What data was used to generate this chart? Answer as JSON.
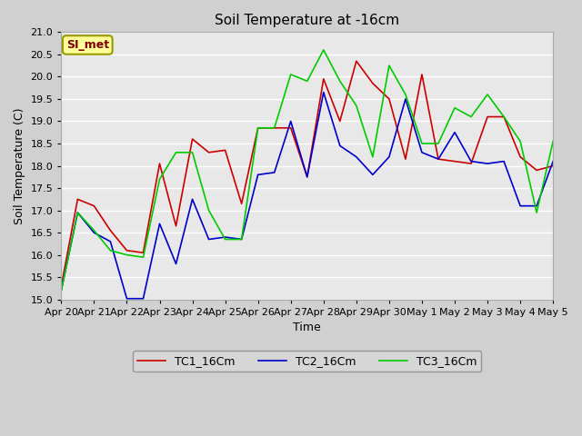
{
  "title": "Soil Temperature at -16cm",
  "xlabel": "Time",
  "ylabel": "Soil Temperature (C)",
  "ylim": [
    15.0,
    21.0
  ],
  "yticks": [
    15.0,
    15.5,
    16.0,
    16.5,
    17.0,
    17.5,
    18.0,
    18.5,
    19.0,
    19.5,
    20.0,
    20.5,
    21.0
  ],
  "annotation_text": "SI_met",
  "annotation_box_color": "#ffff99",
  "annotation_text_color": "#800000",
  "legend": [
    "TC1_16Cm",
    "TC2_16Cm",
    "TC3_16Cm"
  ],
  "line_colors": [
    "#cc0000",
    "#0000cc",
    "#00cc00"
  ],
  "x_labels": [
    "Apr 20",
    "Apr 21",
    "Apr 22",
    "Apr 23",
    "Apr 24",
    "Apr 25",
    "Apr 26",
    "Apr 27",
    "Apr 28",
    "Apr 29",
    "Apr 30",
    "May 1",
    "May 2",
    "May 3",
    "May 4",
    "May 5"
  ],
  "tc1_x": [
    0.0,
    0.5,
    1.0,
    1.5,
    2.0,
    2.5,
    3.0,
    3.5,
    4.0,
    4.5,
    5.0,
    5.5,
    6.0,
    6.5,
    7.0,
    7.5,
    8.0,
    8.5,
    9.0,
    9.5,
    10.0,
    10.5,
    11.0,
    11.5,
    12.0,
    12.5,
    13.0,
    13.5,
    14.0,
    14.5,
    15.0
  ],
  "tc1_y": [
    15.3,
    17.25,
    17.1,
    16.55,
    16.1,
    16.05,
    18.05,
    16.65,
    18.6,
    18.3,
    18.35,
    17.15,
    18.85,
    18.85,
    18.85,
    17.75,
    19.95,
    19.0,
    20.35,
    19.85,
    19.5,
    18.15,
    20.05,
    18.15,
    18.1,
    18.05,
    19.1,
    19.1,
    18.2,
    17.9,
    18.0
  ],
  "tc2_x": [
    0.0,
    0.5,
    1.0,
    1.5,
    2.0,
    2.5,
    3.0,
    3.5,
    4.0,
    4.5,
    5.0,
    5.5,
    6.0,
    6.5,
    7.0,
    7.5,
    8.0,
    8.5,
    9.0,
    9.5,
    10.0,
    10.5,
    11.0,
    11.5,
    12.0,
    12.5,
    13.0,
    13.5,
    14.0,
    14.5,
    15.0
  ],
  "tc2_y": [
    15.2,
    16.95,
    16.5,
    16.3,
    15.02,
    15.02,
    16.7,
    15.8,
    17.25,
    16.35,
    16.4,
    16.35,
    17.8,
    17.85,
    19.0,
    17.75,
    19.65,
    18.45,
    18.2,
    17.8,
    18.2,
    19.5,
    18.3,
    18.15,
    18.75,
    18.1,
    18.05,
    18.1,
    17.1,
    17.1,
    18.1
  ],
  "tc3_x": [
    0.0,
    0.5,
    1.0,
    1.5,
    2.0,
    2.5,
    3.0,
    3.5,
    4.0,
    4.5,
    5.0,
    5.5,
    6.0,
    6.5,
    7.0,
    7.5,
    8.0,
    8.5,
    9.0,
    9.5,
    10.0,
    10.5,
    11.0,
    11.5,
    12.0,
    12.5,
    13.0,
    13.5,
    14.0,
    14.5,
    15.0
  ],
  "tc3_y": [
    15.2,
    16.95,
    16.55,
    16.1,
    16.0,
    15.95,
    17.7,
    18.3,
    18.3,
    17.0,
    16.35,
    16.35,
    18.85,
    18.85,
    20.05,
    19.9,
    20.6,
    19.9,
    19.35,
    18.2,
    20.25,
    19.6,
    18.5,
    18.5,
    19.3,
    19.1,
    19.6,
    19.1,
    18.55,
    16.95,
    18.55
  ]
}
